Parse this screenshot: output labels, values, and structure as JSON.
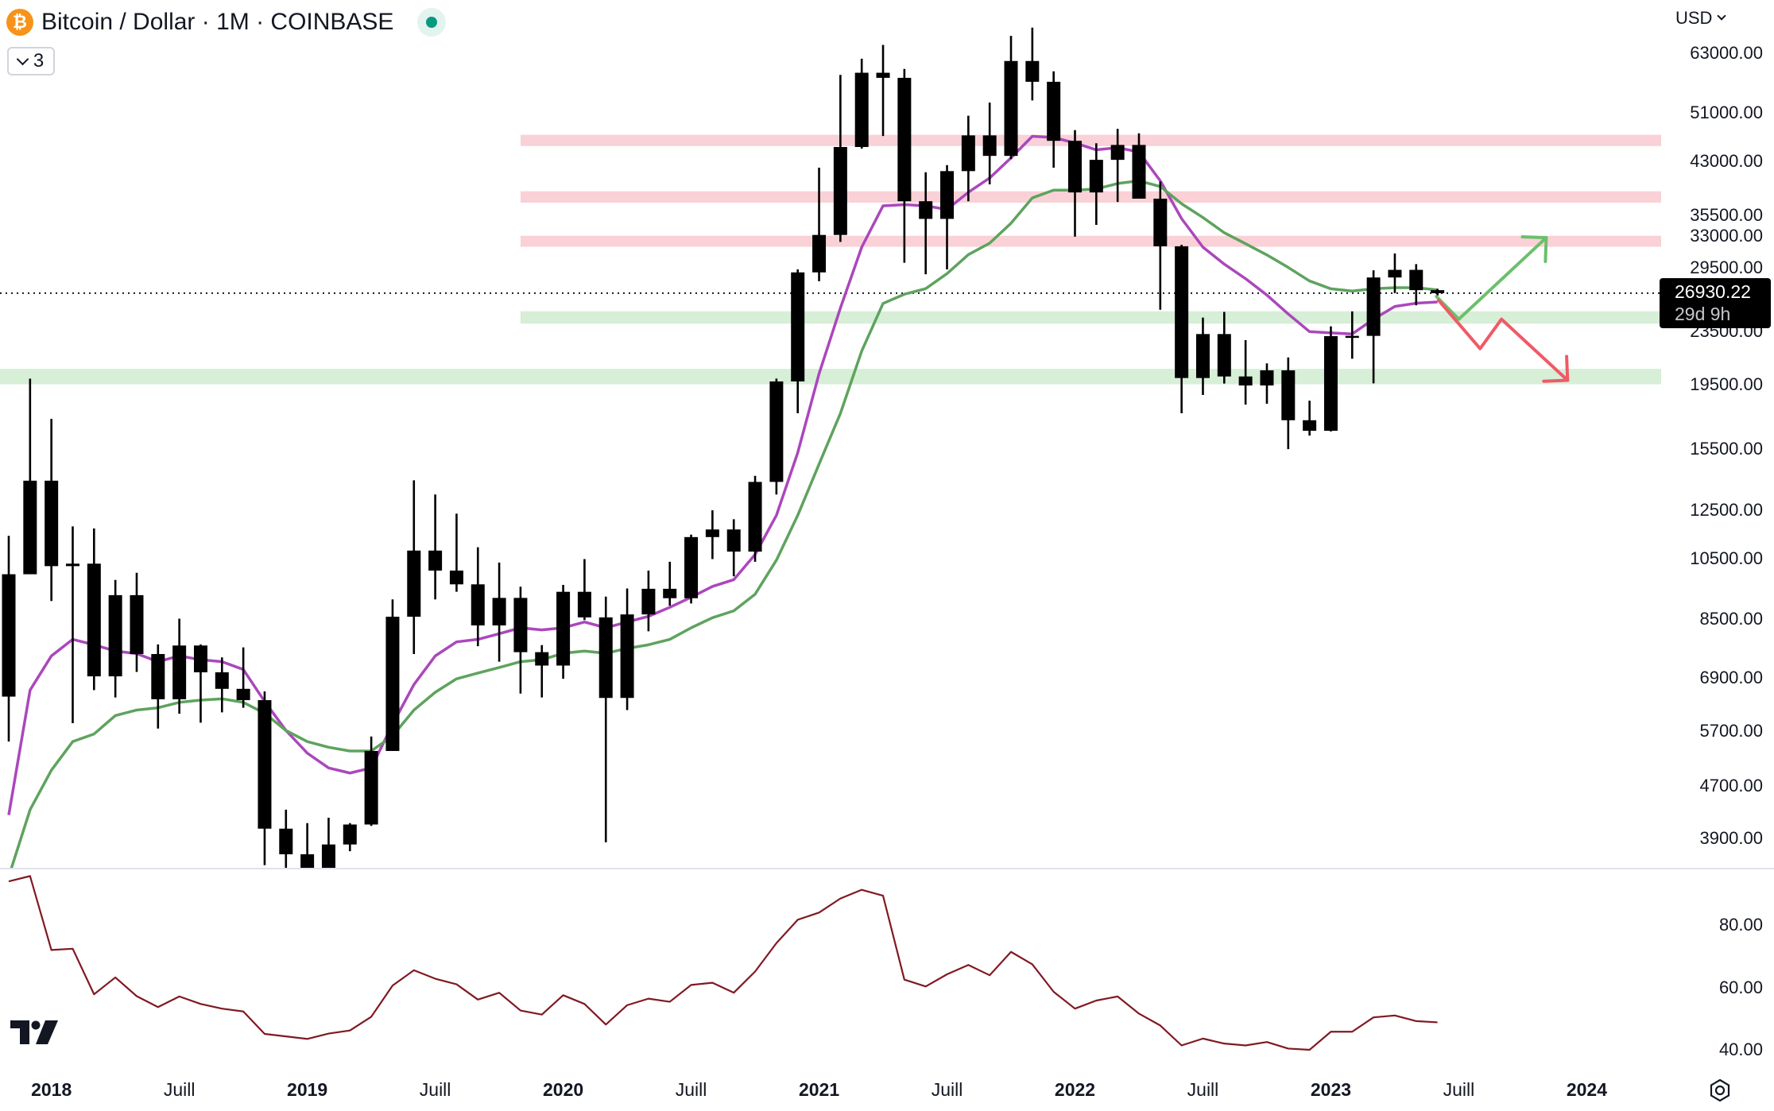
{
  "header": {
    "symbol_icon": "bitcoin-icon",
    "title": "Bitcoin / Dollar · 1M · COINBASE",
    "status_icon": "market-open-dot-icon",
    "indicators_toggle_count": "3",
    "currency": "USD"
  },
  "price_box": {
    "price": "26930.22",
    "countdown": "29d 9h"
  },
  "colors": {
    "candle": "#000000",
    "ema_fast": "#ab47bc",
    "ema_slow": "#5ea35e",
    "rsi": "#801922",
    "resistance_zone": "#f9d1d7",
    "support_zone": "#d7eed7",
    "bull_arrow": "#6cbf6c",
    "bear_arrow": "#ef5a66"
  },
  "chart_data": {
    "type": "candlestick",
    "title": "Bitcoin / Dollar · 1M · COINBASE",
    "scale": "log",
    "current_price": 26930.22,
    "price_ticks": [
      "63000.00",
      "51000.00",
      "43000.00",
      "35500.00",
      "33000.00",
      "29500.00",
      "23500.00",
      "19500.00",
      "15500.00",
      "12500.00",
      "10500.00",
      "8500.00",
      "6900.00",
      "5700.00",
      "4700.00",
      "3900.00"
    ],
    "time_ticks": [
      {
        "label": "2018",
        "bar": 2,
        "major": true
      },
      {
        "label": "Juill",
        "bar": 8,
        "major": false
      },
      {
        "label": "2019",
        "bar": 14,
        "major": true
      },
      {
        "label": "Juill",
        "bar": 20,
        "major": false
      },
      {
        "label": "2020",
        "bar": 26,
        "major": true
      },
      {
        "label": "Juill",
        "bar": 32,
        "major": false
      },
      {
        "label": "2021",
        "bar": 38,
        "major": true
      },
      {
        "label": "Juill",
        "bar": 44,
        "major": false
      },
      {
        "label": "2022",
        "bar": 50,
        "major": true
      },
      {
        "label": "Juill",
        "bar": 56,
        "major": false
      },
      {
        "label": "2023",
        "bar": 62,
        "major": true
      },
      {
        "label": "Juill",
        "bar": 68,
        "major": false
      },
      {
        "label": "2024",
        "bar": 74,
        "major": true
      }
    ],
    "ohlc": [
      [
        6450,
        11400,
        5500,
        9950
      ],
      [
        9950,
        19890,
        10400,
        13860
      ],
      [
        13860,
        17250,
        9050,
        10240
      ],
      [
        10240,
        11790,
        5870,
        10330
      ],
      [
        10330,
        11700,
        6600,
        6930
      ],
      [
        6930,
        9750,
        6430,
        9240
      ],
      [
        9240,
        10000,
        7040,
        7500
      ],
      [
        7500,
        7760,
        5760,
        6390
      ],
      [
        6390,
        8500,
        6070,
        7730
      ],
      [
        7730,
        7760,
        5880,
        7030
      ],
      [
        7030,
        7410,
        6100,
        6630
      ],
      [
        6630,
        7680,
        6200,
        6370
      ],
      [
        6370,
        6570,
        3550,
        4040
      ],
      [
        4040,
        4320,
        3120,
        3690
      ],
      [
        3690,
        4120,
        3360,
        3440
      ],
      [
        3440,
        4200,
        3380,
        3820
      ],
      [
        3820,
        4120,
        3730,
        4100
      ],
      [
        4100,
        5600,
        4080,
        5320
      ],
      [
        5320,
        9100,
        5320,
        8560
      ],
      [
        8560,
        13880,
        7500,
        10820
      ],
      [
        10820,
        13200,
        9100,
        10080
      ],
      [
        10080,
        12330,
        9350,
        9600
      ],
      [
        9600,
        10950,
        7710,
        8300
      ],
      [
        8300,
        10370,
        7300,
        9150
      ],
      [
        9150,
        9520,
        6520,
        7550
      ],
      [
        7550,
        7740,
        6430,
        7200
      ],
      [
        7200,
        9580,
        6870,
        9350
      ],
      [
        9350,
        10500,
        8460,
        8540
      ],
      [
        8540,
        9190,
        3850,
        6420
      ],
      [
        6420,
        9460,
        6150,
        8630
      ],
      [
        8630,
        10080,
        8130,
        9450
      ],
      [
        9450,
        10400,
        8900,
        9140
      ],
      [
        9140,
        11450,
        8970,
        11350
      ],
      [
        11350,
        12480,
        10500,
        11660
      ],
      [
        11660,
        12090,
        9880,
        10780
      ],
      [
        10780,
        14100,
        10400,
        13800
      ],
      [
        13800,
        19900,
        13200,
        19700
      ],
      [
        19700,
        29300,
        17600,
        28990
      ],
      [
        28990,
        42000,
        28100,
        33100
      ],
      [
        33100,
        58350,
        32300,
        45200
      ],
      [
        45200,
        61800,
        44950,
        58800
      ],
      [
        58800,
        64900,
        47000,
        57750
      ],
      [
        57750,
        59600,
        30000,
        37300
      ],
      [
        37300,
        41330,
        28800,
        35040
      ],
      [
        35040,
        42400,
        29300,
        41500
      ],
      [
        41500,
        50500,
        37300,
        47100
      ],
      [
        47100,
        52900,
        39600,
        43800
      ],
      [
        43800,
        67000,
        43300,
        61300
      ],
      [
        61300,
        69000,
        53300,
        56950
      ],
      [
        56950,
        59100,
        42000,
        46200
      ],
      [
        46200,
        47990,
        32900,
        38480
      ],
      [
        38480,
        45800,
        34300,
        43190
      ],
      [
        43190,
        48200,
        37200,
        45530
      ],
      [
        45530,
        47450,
        37700,
        37640
      ],
      [
        37640,
        40000,
        25400,
        31800
      ],
      [
        31800,
        31970,
        17600,
        19940
      ],
      [
        19940,
        24700,
        18780,
        23300
      ],
      [
        23300,
        25200,
        19550,
        20050
      ],
      [
        20050,
        22800,
        18150,
        19420
      ],
      [
        19420,
        21000,
        18200,
        20490
      ],
      [
        20490,
        21450,
        15500,
        17170
      ],
      [
        17170,
        18400,
        16260,
        16540
      ],
      [
        16540,
        23950,
        16500,
        23130
      ],
      [
        23130,
        25250,
        21350,
        23150
      ],
      [
        23150,
        29200,
        19570,
        28470
      ],
      [
        28470,
        31000,
        26940,
        29250
      ],
      [
        29250,
        29850,
        25800,
        27220
      ],
      [
        27220,
        27350,
        26700,
        26930.22
      ]
    ],
    "series": [
      {
        "name": "ema_fast",
        "values": [
          4240,
          6600,
          7450,
          7900,
          7750,
          7580,
          7510,
          7300,
          7450,
          7350,
          7300,
          7100,
          6340,
          5720,
          5280,
          5010,
          4920,
          5010,
          5850,
          6730,
          7450,
          7830,
          7900,
          8060,
          8230,
          8170,
          8230,
          8400,
          8230,
          8400,
          8570,
          8850,
          9170,
          9530,
          9760,
          10670,
          12260,
          15310,
          20250,
          25550,
          31700,
          36700,
          36850,
          36700,
          36230,
          38500,
          40500,
          43500,
          46950,
          46750,
          45850,
          44750,
          45100,
          44400,
          40100,
          35070,
          31700,
          29850,
          28350,
          26750,
          25020,
          23500,
          23400,
          23310,
          24560,
          25690,
          25990,
          26100
        ]
      },
      {
        "name": "ema_slow",
        "values": [
          3410,
          4320,
          4970,
          5500,
          5650,
          6030,
          6150,
          6200,
          6320,
          6370,
          6400,
          6320,
          6080,
          5720,
          5500,
          5390,
          5320,
          5320,
          5610,
          6150,
          6550,
          6870,
          7010,
          7150,
          7300,
          7350,
          7520,
          7580,
          7520,
          7650,
          7750,
          7900,
          8230,
          8530,
          8740,
          9270,
          10460,
          12260,
          14700,
          17590,
          21940,
          25970,
          26830,
          27370,
          28860,
          30870,
          32150,
          34500,
          37740,
          38800,
          38800,
          38950,
          39720,
          40100,
          39300,
          36970,
          35210,
          33360,
          32090,
          30840,
          29500,
          28120,
          27350,
          27130,
          27350,
          27460,
          27460,
          27240
        ]
      }
    ],
    "rsi": {
      "ticks": [
        "80.00",
        "60.00",
        "40.00"
      ],
      "values": [
        94.0,
        95.7,
        72.0,
        72.4,
        57.8,
        63.2,
        57.2,
        53.7,
        57.1,
        54.7,
        53.2,
        52.3,
        45.1,
        44.3,
        43.5,
        45.2,
        46.2,
        50.6,
        60.6,
        65.5,
        62.8,
        61.0,
        56.1,
        58.3,
        52.6,
        51.3,
        57.5,
        54.7,
        48.1,
        54.3,
        56.4,
        55.4,
        60.8,
        61.5,
        58.3,
        65.1,
        74.2,
        81.7,
        84.0,
        88.5,
        91.3,
        89.4,
        62.5,
        60.3,
        64.2,
        67.2,
        63.9,
        71.4,
        67.4,
        58.6,
        53.2,
        55.8,
        57.1,
        51.6,
        47.8,
        41.4,
        43.6,
        42.0,
        41.4,
        42.5,
        40.4,
        40.0,
        45.8,
        45.8,
        50.4,
        51.0,
        49.2,
        48.8
      ]
    },
    "zones": [
      {
        "kind": "resistance",
        "low": 45350,
        "high": 47200,
        "from_bar": 24
      },
      {
        "kind": "resistance",
        "low": 37110,
        "high": 38640,
        "from_bar": 24
      },
      {
        "kind": "resistance",
        "low": 31740,
        "high": 33000,
        "from_bar": 24
      },
      {
        "kind": "support",
        "low": 24170,
        "high": 25260,
        "from_bar": 24
      },
      {
        "kind": "support",
        "low": 19500,
        "high": 20600,
        "from_bar": -1
      }
    ],
    "projections": [
      {
        "kind": "bull",
        "points": [
          [
            66.95,
            26620
          ],
          [
            68.0,
            24560
          ],
          [
            72.1,
            32780
          ]
        ]
      },
      {
        "kind": "bear",
        "points": [
          [
            67.05,
            26260
          ],
          [
            69.0,
            22130
          ],
          [
            70.0,
            24560
          ],
          [
            73.1,
            19780
          ]
        ]
      }
    ]
  }
}
